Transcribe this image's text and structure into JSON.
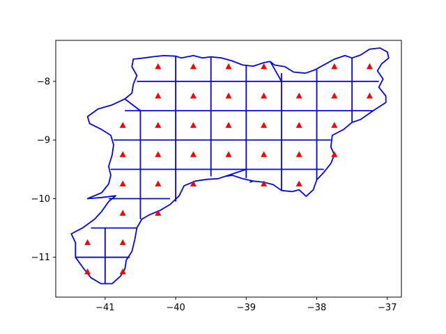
{
  "chart_data": {
    "type": "scatter",
    "title": "",
    "xlabel": "",
    "ylabel": "",
    "xlim": [
      -41.7,
      -36.8
    ],
    "ylim": [
      -11.68,
      -7.3
    ],
    "xticks": [
      -41,
      -40,
      -39,
      -38,
      -37
    ],
    "yticks": [
      -8,
      -9,
      -10,
      -11
    ],
    "xtick_labels": [
      "−41",
      "−40",
      "−39",
      "−38",
      "−37"
    ],
    "ytick_labels": [
      "−8",
      "−9",
      "−10",
      "−11"
    ],
    "grid": false,
    "colors": {
      "boundary": "#0000ff",
      "marker": "#ff0000",
      "axes": "#000000"
    },
    "marker": "triangle",
    "series": [
      {
        "x": [
          -40.25,
          -39.75,
          -39.25,
          -38.75,
          -37.75,
          -37.25,
          -40.25,
          -39.75,
          -39.25,
          -38.75,
          -38.25,
          -37.75,
          -37.25,
          -40.75,
          -40.25,
          -39.75,
          -39.25,
          -38.75,
          -38.25,
          -37.75,
          -40.75,
          -40.25,
          -39.75,
          -39.25,
          -38.75,
          -38.25,
          -37.75,
          -40.75,
          -40.25,
          -39.75,
          -38.75,
          -38.25,
          -40.75,
          -40.25,
          -41.25,
          -40.75,
          -41.25,
          -40.75
        ],
        "y": [
          -7.75,
          -7.75,
          -7.75,
          -7.75,
          -7.75,
          -7.75,
          -8.25,
          -8.25,
          -8.25,
          -8.25,
          -8.25,
          -8.25,
          -8.25,
          -8.75,
          -8.75,
          -8.75,
          -8.75,
          -8.75,
          -8.75,
          -8.75,
          -9.25,
          -9.25,
          -9.25,
          -9.25,
          -9.25,
          -9.25,
          -9.25,
          -9.75,
          -9.75,
          -9.75,
          -9.75,
          -9.75,
          -10.25,
          -10.25,
          -10.75,
          -10.75,
          -11.25,
          -11.25
        ]
      }
    ],
    "boundary": [
      [
        -40.33,
        -7.58
      ],
      [
        -40.17,
        -7.56
      ],
      [
        -40.0,
        -7.57
      ],
      [
        -39.92,
        -7.6
      ],
      [
        -39.75,
        -7.56
      ],
      [
        -39.62,
        -7.6
      ],
      [
        -39.5,
        -7.58
      ],
      [
        -39.35,
        -7.6
      ],
      [
        -39.2,
        -7.65
      ],
      [
        -39.05,
        -7.72
      ],
      [
        -38.9,
        -7.74
      ],
      [
        -38.75,
        -7.68
      ],
      [
        -38.66,
        -7.66
      ],
      [
        -38.6,
        -7.72
      ],
      [
        -38.45,
        -7.75
      ],
      [
        -38.33,
        -7.84
      ],
      [
        -38.16,
        -7.86
      ],
      [
        -38.02,
        -7.8
      ],
      [
        -37.87,
        -7.7
      ],
      [
        -37.75,
        -7.62
      ],
      [
        -37.6,
        -7.56
      ],
      [
        -37.5,
        -7.6
      ],
      [
        -37.38,
        -7.55
      ],
      [
        -37.25,
        -7.45
      ],
      [
        -37.1,
        -7.43
      ],
      [
        -37.0,
        -7.5
      ],
      [
        -36.98,
        -7.6
      ],
      [
        -37.08,
        -7.7
      ],
      [
        -37.14,
        -7.82
      ],
      [
        -37.06,
        -7.96
      ],
      [
        -37.12,
        -8.1
      ],
      [
        -37.02,
        -8.25
      ],
      [
        -37.02,
        -8.36
      ],
      [
        -37.2,
        -8.5
      ],
      [
        -37.38,
        -8.65
      ],
      [
        -37.5,
        -8.7
      ],
      [
        -37.62,
        -8.82
      ],
      [
        -37.78,
        -8.92
      ],
      [
        -37.8,
        -9.12
      ],
      [
        -37.75,
        -9.25
      ],
      [
        -37.8,
        -9.4
      ],
      [
        -37.9,
        -9.55
      ],
      [
        -38.0,
        -9.68
      ],
      [
        -38.05,
        -9.85
      ],
      [
        -38.15,
        -9.96
      ],
      [
        -38.25,
        -9.85
      ],
      [
        -38.35,
        -9.88
      ],
      [
        -38.5,
        -9.86
      ],
      [
        -38.62,
        -9.76
      ],
      [
        -38.75,
        -9.72
      ],
      [
        -38.9,
        -9.7
      ],
      [
        -39.05,
        -9.66
      ],
      [
        -39.2,
        -9.6
      ],
      [
        -39.3,
        -9.62
      ],
      [
        -39.4,
        -9.66
      ],
      [
        -39.55,
        -9.67
      ],
      [
        -39.72,
        -9.7
      ],
      [
        -39.88,
        -9.78
      ],
      [
        -39.95,
        -9.95
      ],
      [
        -40.08,
        -10.1
      ],
      [
        -40.22,
        -10.2
      ],
      [
        -40.38,
        -10.28
      ],
      [
        -40.48,
        -10.35
      ],
      [
        -40.55,
        -10.5
      ],
      [
        -40.58,
        -10.7
      ],
      [
        -40.62,
        -10.9
      ],
      [
        -40.7,
        -11.05
      ],
      [
        -40.72,
        -11.2
      ],
      [
        -40.78,
        -11.32
      ],
      [
        -40.9,
        -11.45
      ],
      [
        -41.06,
        -11.45
      ],
      [
        -41.2,
        -11.35
      ],
      [
        -41.3,
        -11.2
      ],
      [
        -41.42,
        -11.0
      ],
      [
        -41.42,
        -10.75
      ],
      [
        -41.48,
        -10.6
      ],
      [
        -41.32,
        -10.5
      ],
      [
        -41.15,
        -10.35
      ],
      [
        -41.05,
        -10.22
      ],
      [
        -40.95,
        -10.05
      ],
      [
        -40.85,
        -9.95
      ],
      [
        -41.05,
        -9.98
      ],
      [
        -41.25,
        -10.0
      ],
      [
        -41.05,
        -9.9
      ],
      [
        -40.95,
        -9.75
      ],
      [
        -40.92,
        -9.6
      ],
      [
        -40.95,
        -9.45
      ],
      [
        -40.9,
        -9.25
      ],
      [
        -40.88,
        -9.08
      ],
      [
        -40.92,
        -8.92
      ],
      [
        -41.05,
        -8.82
      ],
      [
        -41.22,
        -8.72
      ],
      [
        -41.25,
        -8.6
      ],
      [
        -41.1,
        -8.47
      ],
      [
        -40.9,
        -8.4
      ],
      [
        -40.72,
        -8.3
      ],
      [
        -40.62,
        -8.2
      ],
      [
        -40.6,
        -8.05
      ],
      [
        -40.55,
        -7.9
      ],
      [
        -40.62,
        -7.75
      ],
      [
        -40.6,
        -7.62
      ],
      [
        -40.45,
        -7.6
      ],
      [
        -40.33,
        -7.58
      ]
    ],
    "grid_lines": [
      [
        [
          -40.0,
          -7.57
        ],
        [
          -40.0,
          -10.05
        ]
      ],
      [
        [
          -39.5,
          -7.58
        ],
        [
          -39.5,
          -9.62
        ]
      ],
      [
        [
          -39.0,
          -7.72
        ],
        [
          -39.0,
          -9.65
        ]
      ],
      [
        [
          -38.5,
          -7.86
        ],
        [
          -38.5,
          -9.86
        ]
      ],
      [
        [
          -38.0,
          -7.8
        ],
        [
          -38.0,
          -9.68
        ]
      ],
      [
        [
          -37.5,
          -7.6
        ],
        [
          -37.5,
          -8.7
        ]
      ],
      [
        [
          -40.5,
          -8.5
        ],
        [
          -40.5,
          -10.35
        ]
      ],
      [
        [
          -41.0,
          -10.5
        ],
        [
          -41.0,
          -11.45
        ]
      ],
      [
        [
          -40.55,
          -8.0
        ],
        [
          -37.12,
          -8.0
        ]
      ],
      [
        [
          -40.72,
          -8.5
        ],
        [
          -37.2,
          -8.5
        ]
      ],
      [
        [
          -40.88,
          -9.0
        ],
        [
          -37.8,
          -9.0
        ]
      ],
      [
        [
          -40.92,
          -9.5
        ],
        [
          -37.9,
          -9.5
        ]
      ],
      [
        [
          -40.95,
          -10.0
        ],
        [
          -40.08,
          -10.0
        ]
      ],
      [
        [
          -41.2,
          -10.5
        ],
        [
          -40.55,
          -10.5
        ]
      ],
      [
        [
          -41.42,
          -11.0
        ],
        [
          -40.65,
          -11.0
        ]
      ],
      [
        [
          -40.72,
          -8.3
        ],
        [
          -40.5,
          -8.5
        ]
      ],
      [
        [
          -38.66,
          -7.66
        ],
        [
          -38.5,
          -8.0
        ]
      ],
      [
        [
          -39.3,
          -9.62
        ],
        [
          -39.0,
          -9.5
        ]
      ],
      [
        [
          -38.95,
          -9.72
        ],
        [
          -38.9,
          -9.7
        ]
      ]
    ]
  }
}
